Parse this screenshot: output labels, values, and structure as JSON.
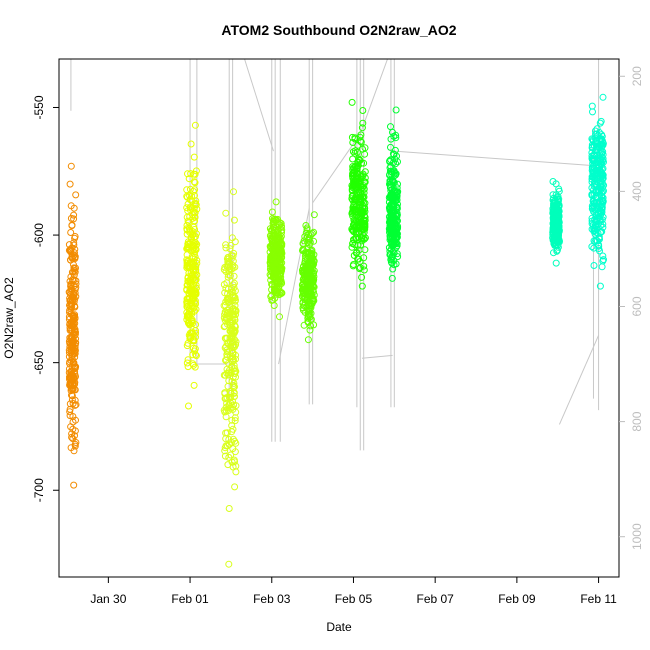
{
  "chart_data": {
    "type": "scatter",
    "title": "ATOM2 Southbound O2N2raw_AO2",
    "xlabel": "Date",
    "ylabel": "O2N2raw_AO2",
    "xlim": [
      "2020-01-28T19:00",
      "2020-02-11T12:00"
    ],
    "ylim": [
      -734,
      -531
    ],
    "y2lim": [
      1070,
      170
    ],
    "x_ticks": [
      {
        "date": "2020-01-30",
        "label": "Jan 30"
      },
      {
        "date": "2020-02-01",
        "label": "Feb 01"
      },
      {
        "date": "2020-02-03",
        "label": "Feb 03"
      },
      {
        "date": "2020-02-05",
        "label": "Feb 05"
      },
      {
        "date": "2020-02-07",
        "label": "Feb 07"
      },
      {
        "date": "2020-02-09",
        "label": "Feb 09"
      },
      {
        "date": "2020-02-11",
        "label": "Feb 11"
      }
    ],
    "y_ticks": [
      -700,
      -650,
      -600,
      -550
    ],
    "y2_ticks": [
      200,
      400,
      600,
      800,
      1000
    ],
    "grid": false,
    "marker": "open-circle",
    "series": [
      {
        "start": "2020-01-29T01:00",
        "end": "2020-01-29T05:00",
        "min": -698,
        "max": -573,
        "median": -640,
        "color": "#f28c00"
      },
      {
        "start": "2020-01-31T22:00",
        "end": "2020-02-01T04:00",
        "min": -667,
        "max": -557,
        "median": -615,
        "color": "#e5ff00"
      },
      {
        "start": "2020-02-01T20:00",
        "end": "2020-02-02T03:00",
        "min": -729,
        "max": -583,
        "median": -640,
        "color": "#d9ff1a"
      },
      {
        "start": "2020-02-02T23:00",
        "end": "2020-02-03T06:00",
        "min": -632,
        "max": -587,
        "median": -608,
        "color": "#88ff00"
      },
      {
        "start": "2020-02-03T18:00",
        "end": "2020-02-04T01:00",
        "min": -641,
        "max": -592,
        "median": -617,
        "color": "#66ff00"
      },
      {
        "start": "2020-02-04T23:00",
        "end": "2020-02-05T07:00",
        "min": -620,
        "max": -548,
        "median": -588,
        "color": "#22ff00"
      },
      {
        "start": "2020-02-05T21:00",
        "end": "2020-02-06T02:00",
        "min": -617,
        "max": -551,
        "median": -592,
        "color": "#00ff33"
      },
      {
        "start": "2020-02-09T21:00",
        "end": "2020-02-10T01:00",
        "min": -611,
        "max": -579,
        "median": -596,
        "color": "#00ffbb"
      },
      {
        "start": "2020-02-10T20:00",
        "end": "2020-02-11T03:00",
        "min": -620,
        "max": -546,
        "median": -578,
        "color": "#00ffcc"
      }
    ],
    "secondary_line": {
      "color": "#c8c8c8",
      "profiles": [
        {
          "date": "2020-01-29T02:00",
          "top": 170,
          "bottom": 260
        },
        {
          "date": "2020-02-01T00:00",
          "top": 170,
          "bottom": 700
        },
        {
          "date": "2020-02-01T04:00",
          "top": 170,
          "bottom": 700
        },
        {
          "date": "2020-02-01T23:00",
          "top": 170,
          "bottom": 760
        },
        {
          "date": "2020-02-02T01:00",
          "top": 170,
          "bottom": 740
        },
        {
          "date": "2020-02-03T00:00",
          "top": 170,
          "bottom": 835
        },
        {
          "date": "2020-02-03T02:00",
          "top": 170,
          "bottom": 835
        },
        {
          "date": "2020-02-03T05:00",
          "top": 170,
          "bottom": 835
        },
        {
          "date": "2020-02-03T22:00",
          "top": 170,
          "bottom": 770
        },
        {
          "date": "2020-02-04T00:00",
          "top": 170,
          "bottom": 770
        },
        {
          "date": "2020-02-05T02:00",
          "top": 170,
          "bottom": 775
        },
        {
          "date": "2020-02-05T04:00",
          "top": 170,
          "bottom": 850
        },
        {
          "date": "2020-02-05T06:00",
          "top": 170,
          "bottom": 850
        },
        {
          "date": "2020-02-05T22:00",
          "top": 170,
          "bottom": 775
        },
        {
          "date": "2020-02-06T00:00",
          "top": 170,
          "bottom": 775
        },
        {
          "date": "2020-02-10T21:00",
          "top": 290,
          "bottom": 760
        },
        {
          "date": "2020-02-11T00:00",
          "top": 170,
          "bottom": 780
        }
      ],
      "links": [
        [
          {
            "date": "2020-02-01T04:00",
            "value": 700
          },
          {
            "date": "2020-02-01T22:00",
            "value": 700
          }
        ],
        [
          {
            "date": "2020-02-02T08:00",
            "value": 170
          },
          {
            "date": "2020-02-03T01:00",
            "value": 330
          }
        ],
        [
          {
            "date": "2020-02-03T04:00",
            "value": 700
          },
          {
            "date": "2020-02-03T22:00",
            "value": 430
          }
        ],
        [
          {
            "date": "2020-02-04T00:00",
            "value": 420
          },
          {
            "date": "2020-02-05T04:00",
            "value": 300
          }
        ],
        [
          {
            "date": "2020-02-05T04:00",
            "value": 300
          },
          {
            "date": "2020-02-05T20:00",
            "value": 170
          }
        ],
        [
          {
            "date": "2020-02-05T05:00",
            "value": 690
          },
          {
            "date": "2020-02-05T23:00",
            "value": 685
          }
        ],
        [
          {
            "date": "2020-02-06T00:00",
            "value": 330
          },
          {
            "date": "2020-02-10T20:00",
            "value": 355
          }
        ],
        [
          {
            "date": "2020-02-10T01:00",
            "value": 805
          },
          {
            "date": "2020-02-11T00:00",
            "value": 650
          }
        ]
      ]
    }
  }
}
